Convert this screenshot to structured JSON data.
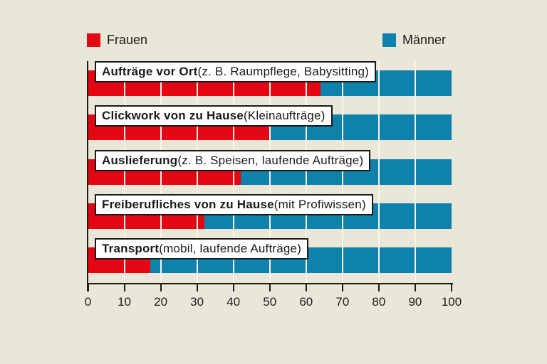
{
  "page": {
    "background": "#eae7d9"
  },
  "legend": {
    "items": [
      {
        "label": "Frauen",
        "color": "#e30613"
      },
      {
        "label": "Männer",
        "color": "#0e81ad"
      }
    ]
  },
  "chart_data": {
    "type": "bar",
    "orientation": "horizontal",
    "stacked": true,
    "unit": "percent",
    "xlim": [
      0,
      100
    ],
    "x_ticks": [
      0,
      10,
      20,
      30,
      40,
      50,
      60,
      70,
      80,
      90,
      100
    ],
    "grid": "vertical cream lines every 10 percent",
    "legend_position": "top",
    "categories": [
      "Aufträge vor Ort (z. B. Raumpflege, Babysitting)",
      "Clickwork von zu Hause (Kleinaufträge)",
      "Auslieferung (z. B. Speisen, laufende Aufträge)",
      "Freiberufliches von zu Hause (mit Profiwissen)",
      "Transport (mobil, laufende Aufträge)"
    ],
    "category_label_parts": [
      {
        "bold": "Aufträge vor Ort",
        "regular": " (z. B. Raumpflege, Babysitting)"
      },
      {
        "bold": "Clickwork von zu Hause",
        "regular": " (Kleinaufträge)"
      },
      {
        "bold": "Auslieferung",
        "regular": " (z. B. Speisen, laufende Aufträge)"
      },
      {
        "bold": "Freiberufliches von zu Hause",
        "regular": " (mit Profiwissen)"
      },
      {
        "bold": "Transport",
        "regular": " (mobil, laufende Aufträge)"
      }
    ],
    "series": [
      {
        "name": "Frauen",
        "color": "#e30613",
        "values": [
          64,
          50,
          42,
          32,
          17
        ]
      },
      {
        "name": "Männer",
        "color": "#0e81ad",
        "values": [
          36,
          50,
          58,
          68,
          83
        ]
      }
    ]
  },
  "colors": {
    "background": "#eae7d9",
    "frauen_red": "#e30613",
    "maenner_blue": "#0e81ad",
    "axis": "#1d1d1b",
    "gridline": "#f8f5ea",
    "label_box_bg": "#ffffff",
    "label_box_border": "#1a1a18"
  }
}
